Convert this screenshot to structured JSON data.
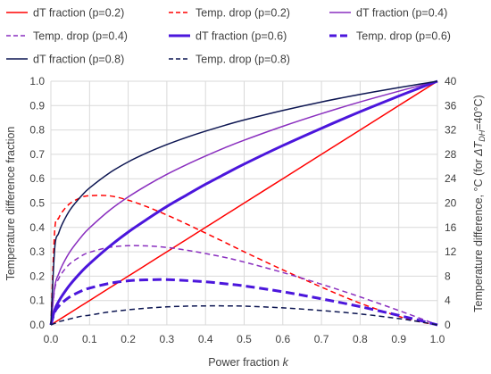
{
  "chart_data": {
    "type": "line",
    "title": "",
    "xlabel": "Power fraction k",
    "xlabel_parts": [
      "Power fraction ",
      "k"
    ],
    "ylabel": "Temperature difference fraction",
    "y2label": "Temperature difference, °C (for ΔT_DH=40°C)",
    "y2label_parts": [
      "Temperature difference, °C (for ",
      "ΔT",
      "DH",
      "=40°C)"
    ],
    "xlim": [
      0,
      1
    ],
    "ylim": [
      0,
      1
    ],
    "y2lim": [
      0,
      40
    ],
    "xticks": [
      "0.0",
      "0.1",
      "0.2",
      "0.3",
      "0.4",
      "0.5",
      "0.6",
      "0.7",
      "0.8",
      "0.9",
      "1.0"
    ],
    "yticks": [
      "0.0",
      "0.1",
      "0.2",
      "0.3",
      "0.4",
      "0.5",
      "0.6",
      "0.7",
      "0.8",
      "0.9",
      "1.0"
    ],
    "y2ticks": [
      "0",
      "4",
      "8",
      "12",
      "16",
      "20",
      "24",
      "28",
      "32",
      "36",
      "40"
    ],
    "grid": true,
    "legend_position": "top",
    "x": [
      0,
      0.01,
      0.02,
      0.03,
      0.05,
      0.08,
      0.1,
      0.15,
      0.2,
      0.25,
      0.3,
      0.35,
      0.4,
      0.45,
      0.5,
      0.6,
      0.7,
      0.8,
      0.9,
      0.95,
      1.0
    ],
    "series": [
      {
        "name": "dT fraction (p=0.2)",
        "color": "#ff0000",
        "dash": "solid",
        "width": 1.5,
        "values": [
          0,
          0.01,
          0.02,
          0.03,
          0.05,
          0.08,
          0.1,
          0.15,
          0.2,
          0.25,
          0.3,
          0.35,
          0.4,
          0.45,
          0.5,
          0.6,
          0.7,
          0.8,
          0.9,
          0.95,
          1.0
        ]
      },
      {
        "name": "Temp. drop (p=0.2)",
        "color": "#ff0000",
        "dash": "dashed",
        "width": 1.5,
        "values": [
          0,
          0.39,
          0.437,
          0.465,
          0.499,
          0.524,
          0.53,
          0.53,
          0.512,
          0.484,
          0.451,
          0.415,
          0.377,
          0.339,
          0.3,
          0.226,
          0.155,
          0.089,
          0.035,
          0.014,
          0
        ]
      },
      {
        "name": "dT fraction (p=0.4)",
        "color": "#8a2fbf",
        "dash": "solid",
        "width": 1.5,
        "values": [
          0,
          0.158,
          0.209,
          0.246,
          0.302,
          0.364,
          0.398,
          0.468,
          0.525,
          0.574,
          0.618,
          0.657,
          0.693,
          0.727,
          0.758,
          0.815,
          0.867,
          0.915,
          0.959,
          0.98,
          1.0
        ]
      },
      {
        "name": "Temp. drop (p=0.4)",
        "color": "#8a2fbf",
        "dash": "dashed",
        "width": 1.5,
        "values": [
          0,
          0.148,
          0.189,
          0.216,
          0.252,
          0.284,
          0.298,
          0.318,
          0.325,
          0.324,
          0.318,
          0.307,
          0.293,
          0.277,
          0.258,
          0.215,
          0.167,
          0.115,
          0.059,
          0.03,
          0
        ]
      },
      {
        "name": "dT fraction (p=0.6)",
        "color": "#4b16dc",
        "dash": "solid",
        "width": 3,
        "values": [
          0,
          0.063,
          0.096,
          0.122,
          0.166,
          0.22,
          0.251,
          0.32,
          0.381,
          0.435,
          0.486,
          0.532,
          0.577,
          0.619,
          0.66,
          0.736,
          0.807,
          0.875,
          0.939,
          0.97,
          1.0
        ]
      },
      {
        "name": "Temp. drop (p=0.6)",
        "color": "#4b16dc",
        "dash": "dashed",
        "width": 3,
        "values": [
          0,
          0.053,
          0.076,
          0.092,
          0.116,
          0.14,
          0.151,
          0.17,
          0.181,
          0.185,
          0.186,
          0.182,
          0.177,
          0.169,
          0.16,
          0.136,
          0.107,
          0.075,
          0.039,
          0.02,
          0
        ]
      },
      {
        "name": "dT fraction (p=0.8)",
        "color": "#0d1652",
        "dash": "solid",
        "width": 1.5,
        "values": [
          0,
          0.316,
          0.376,
          0.416,
          0.473,
          0.531,
          0.562,
          0.622,
          0.669,
          0.707,
          0.74,
          0.769,
          0.795,
          0.819,
          0.841,
          0.88,
          0.915,
          0.946,
          0.974,
          0.987,
          1.0
        ]
      },
      {
        "name": "Temp. drop (p=0.8)",
        "color": "#0d1652",
        "dash": "dashed",
        "width": 1.5,
        "values": [
          0,
          0.006,
          0.013,
          0.017,
          0.025,
          0.036,
          0.04,
          0.053,
          0.062,
          0.069,
          0.074,
          0.077,
          0.078,
          0.078,
          0.077,
          0.07,
          0.059,
          0.045,
          0.026,
          0.014,
          0
        ]
      }
    ]
  }
}
